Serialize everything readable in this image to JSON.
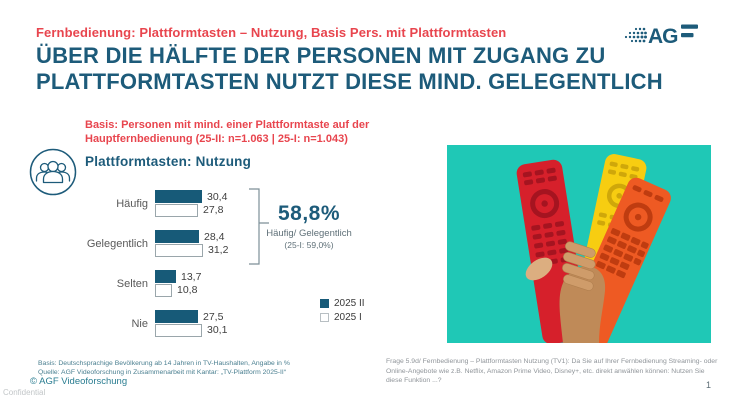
{
  "header": {
    "kicker": "Fernbedienung: Plattformtasten – Nutzung, Basis Pers. mit Plattformtasten",
    "title": "ÜBER DIE HÄLFTE DER PERSONEN MIT ZUGANG ZU PLATTFORMTASTEN NUTZT DIESE MIND. GELEGENTLICH",
    "logo_text": "AG"
  },
  "intro": {
    "basis": "Basis: Personen mit mind. einer Plattformtaste auf der Hauptfernbedienung (25-II: n=1.063 | 25-I: n=1.043)",
    "section_title": "Plattformtasten: Nutzung"
  },
  "chart_data": {
    "type": "bar",
    "orientation": "horizontal",
    "title": "Plattformtasten: Nutzung",
    "unit": "%",
    "categories": [
      "Häufig",
      "Gelegentlich",
      "Selten",
      "Nie"
    ],
    "series": [
      {
        "name": "2025 II",
        "color": "#175a78",
        "values": [
          30.4,
          28.4,
          13.7,
          27.5
        ],
        "labels": [
          "30,4",
          "28,4",
          "13,7",
          "27,5"
        ]
      },
      {
        "name": "2025 I",
        "color": "#ffffff",
        "values": [
          27.8,
          31.2,
          10.8,
          30.1
        ],
        "labels": [
          "27,8",
          "31,2",
          "10,8",
          "30,1"
        ]
      }
    ],
    "xlim": [
      0,
      35
    ],
    "grid": false,
    "legend_position": "bottom-right",
    "annotation": {
      "value": "58,8%",
      "label": "Häufig/ Gelegentlich",
      "sublabel": "(25-I: 59,0%)",
      "spans_categories": [
        "Häufig",
        "Gelegentlich"
      ]
    }
  },
  "image": {
    "description": "hand-holding-three-colorful-remote-controls",
    "background_color": "#1fc8b6"
  },
  "footer": {
    "basis_note": "Basis: Deutschsprachige Bevölkerung ab 14 Jahren in TV-Haushalten, Angabe in %",
    "source_note": "Quelle: AGF Videoforschung in Zusammenarbeit mit Kantar: „TV-Plattform 2025-II“",
    "copyright": "© AGF Videoforschung",
    "confidential": "Confidential",
    "question": "Frage 5.9d/ Fernbedienung – Plattformtasten Nutzung (TV1): Da Sie auf Ihrer Fernbedienung Streaming- oder Online-Angebote wie z.B. Netflix, Amazon Prime Video, Disney+, etc. direkt anwählen können: Nutzen Sie diese Funktion ...?",
    "page_number": "1"
  },
  "colors": {
    "accent_red": "#e8454e",
    "brand_teal": "#1d5b7a",
    "bar_dark": "#175a78",
    "photo_background": "#1fc8b6"
  }
}
